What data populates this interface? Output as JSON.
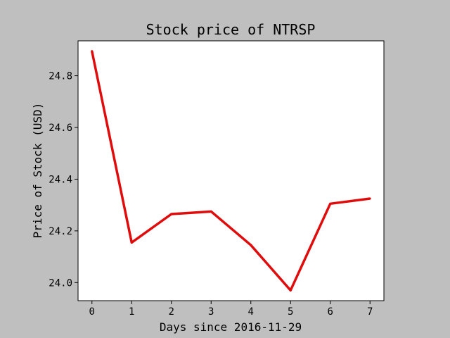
{
  "chart_data": {
    "type": "line",
    "title": "Stock price of NTRSP",
    "xlabel": "Days since 2016-11-29",
    "ylabel": "Price of Stock (USD)",
    "x": [
      0,
      1,
      2,
      3,
      4,
      5,
      6,
      7
    ],
    "x_ticks": [
      "0",
      "1",
      "2",
      "3",
      "4",
      "5",
      "6",
      "7"
    ],
    "y_ticks": [
      "24.0",
      "24.2",
      "24.4",
      "24.6",
      "24.8"
    ],
    "xlim": [
      -0.35,
      7.35
    ],
    "ylim": [
      23.93,
      24.935
    ],
    "grid": false,
    "series": [
      {
        "values": [
          24.895,
          24.155,
          24.265,
          24.275,
          24.145,
          23.97,
          24.305,
          24.325
        ],
        "color": "#e00c0c"
      }
    ],
    "background_color": "#bfbfbf",
    "plot_background_color": "#ffffff"
  }
}
